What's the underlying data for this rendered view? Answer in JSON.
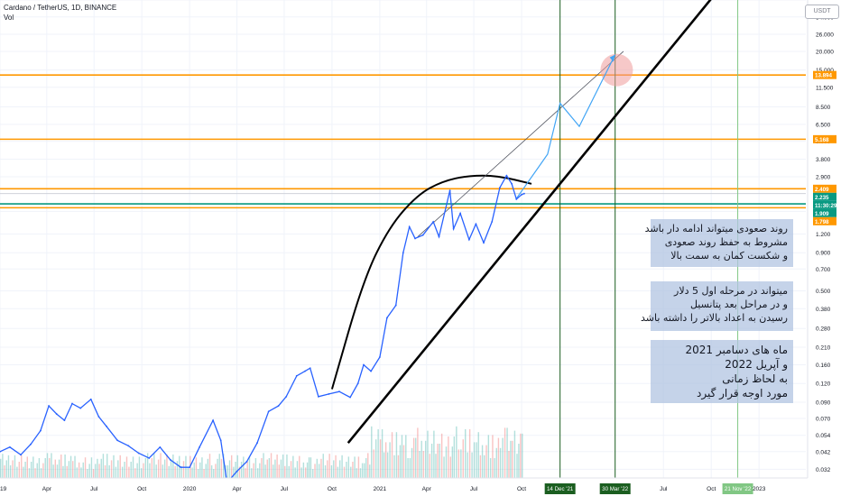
{
  "header": {
    "symbol_line": "Cardano / TetherUS, 1D, BINANCE",
    "volume_label": "Vol",
    "currency_label": "USDT"
  },
  "notes": [
    {
      "lines": [
        "روند صعودی میتواند ادامه دار باشد",
        "مشروط به حفظ روند صعودی",
        "و شکست کمان به سمت بالا"
      ]
    },
    {
      "lines": [
        "میتواند در مرحله اول 5 دلار",
        "و در مراحل بعد پتانسیل",
        "رسیدن به اعداد بالاتر را داشته باشد"
      ]
    },
    {
      "lines": [
        "ماه های دسامبر 2021",
        "و آپریل 2022",
        "به لحاظ زمانی",
        "مورد اوجه قرار گیرد"
      ]
    }
  ],
  "colors": {
    "price_line": "#2962ff",
    "trend_line": "#000000",
    "level_line": "#ff9800",
    "teal_line": "#089981",
    "vertical_green": "#1b5e20",
    "vertical_light_green": "#81c784",
    "target_circle": "#ef9a9a",
    "volume_up": "#26a69a",
    "volume_down": "#ef5350"
  },
  "chart_data": {
    "type": "line",
    "y_scale": "log",
    "ylim": [
      0.028,
      44.116
    ],
    "x_start": "2019-01-01",
    "x_end": "2023-04-01",
    "y_tick_labels": [
      "44.116",
      "34.000",
      "26.000",
      "20.000",
      "15.000",
      "11.500",
      "8.500",
      "6.500",
      "5.000",
      "3.800",
      "2.900",
      "1.700",
      "1.200",
      "0.900",
      "0.700",
      "0.500",
      "0.380",
      "0.280",
      "0.210",
      "0.160",
      "0.120",
      "0.090",
      "0.070",
      "0.054",
      "0.042",
      "0.032"
    ],
    "x_tick_labels": [
      {
        "date": "2019-01-01",
        "label": "2019"
      },
      {
        "date": "2019-04-01",
        "label": "Apr"
      },
      {
        "date": "2019-07-01",
        "label": "Jul"
      },
      {
        "date": "2019-10-01",
        "label": "Oct"
      },
      {
        "date": "2020-01-01",
        "label": "2020"
      },
      {
        "date": "2020-04-01",
        "label": "Apr"
      },
      {
        "date": "2020-07-01",
        "label": "Jul"
      },
      {
        "date": "2020-10-01",
        "label": "Oct"
      },
      {
        "date": "2021-01-01",
        "label": "2021"
      },
      {
        "date": "2021-04-01",
        "label": "Apr"
      },
      {
        "date": "2021-07-01",
        "label": "Jul"
      },
      {
        "date": "2021-10-01",
        "label": "Oct"
      },
      {
        "date": "2022-07-01",
        "label": "Jul"
      },
      {
        "date": "2022-10-01",
        "label": "Oct"
      },
      {
        "date": "2023-01-01",
        "label": "2023"
      }
    ],
    "highlighted_dates": [
      {
        "date": "2021-12-14",
        "label": "14 Dec '21",
        "style": "dark"
      },
      {
        "date": "2022-03-30",
        "label": "30 Mar '22",
        "style": "dark"
      },
      {
        "date": "2022-11-21",
        "label": "21 Nov '22",
        "style": "light"
      }
    ],
    "price_labels": [
      {
        "value": 13.894,
        "label": "13.894",
        "color": "#ff9800"
      },
      {
        "value": 5.168,
        "label": "5.168",
        "color": "#ff9800"
      },
      {
        "value": 2.409,
        "label": "2.409",
        "color": "#ff9800"
      },
      {
        "value": 2.235,
        "label": "2.235",
        "color": "#089981"
      },
      {
        "value": 2.235,
        "label": "11:30:29",
        "color": "#089981"
      },
      {
        "value": 1.909,
        "label": "1.909",
        "color": "#089981"
      },
      {
        "value": 1.798,
        "label": "1.798",
        "color": "#ff9800"
      }
    ],
    "horizontal_levels": [
      {
        "value": 13.894,
        "color": "#ff9800"
      },
      {
        "value": 5.168,
        "color": "#ff9800"
      },
      {
        "value": 2.409,
        "color": "#ff9800"
      },
      {
        "value": 1.909,
        "color": "#089981"
      },
      {
        "value": 1.798,
        "color": "#ff9800"
      }
    ],
    "series": [
      {
        "values": [
          [
            "2019-01-01",
            0.042
          ],
          [
            "2019-01-20",
            0.045
          ],
          [
            "2019-02-10",
            0.04
          ],
          [
            "2019-03-01",
            0.047
          ],
          [
            "2019-03-20",
            0.058
          ],
          [
            "2019-04-05",
            0.085
          ],
          [
            "2019-04-20",
            0.075
          ],
          [
            "2019-05-05",
            0.068
          ],
          [
            "2019-05-20",
            0.088
          ],
          [
            "2019-06-05",
            0.082
          ],
          [
            "2019-06-25",
            0.094
          ],
          [
            "2019-07-10",
            0.072
          ],
          [
            "2019-07-25",
            0.062
          ],
          [
            "2019-08-15",
            0.05
          ],
          [
            "2019-09-05",
            0.046
          ],
          [
            "2019-09-25",
            0.041
          ],
          [
            "2019-10-15",
            0.038
          ],
          [
            "2019-11-05",
            0.045
          ],
          [
            "2019-11-25",
            0.037
          ],
          [
            "2019-12-15",
            0.033
          ],
          [
            "2020-01-01",
            0.033
          ],
          [
            "2020-01-20",
            0.045
          ],
          [
            "2020-02-15",
            0.068
          ],
          [
            "2020-03-01",
            0.05
          ],
          [
            "2020-03-13",
            0.026
          ],
          [
            "2020-04-01",
            0.031
          ],
          [
            "2020-04-20",
            0.036
          ],
          [
            "2020-05-10",
            0.048
          ],
          [
            "2020-06-01",
            0.078
          ],
          [
            "2020-06-20",
            0.085
          ],
          [
            "2020-07-05",
            0.098
          ],
          [
            "2020-07-25",
            0.135
          ],
          [
            "2020-08-10",
            0.145
          ],
          [
            "2020-08-20",
            0.152
          ],
          [
            "2020-09-05",
            0.098
          ],
          [
            "2020-09-25",
            0.102
          ],
          [
            "2020-10-15",
            0.106
          ],
          [
            "2020-11-05",
            0.097
          ],
          [
            "2020-11-20",
            0.12
          ],
          [
            "2020-12-01",
            0.16
          ],
          [
            "2020-12-15",
            0.145
          ],
          [
            "2021-01-01",
            0.18
          ],
          [
            "2021-01-15",
            0.33
          ],
          [
            "2021-02-01",
            0.4
          ],
          [
            "2021-02-15",
            0.9
          ],
          [
            "2021-02-27",
            1.34
          ],
          [
            "2021-03-10",
            1.12
          ],
          [
            "2021-03-25",
            1.18
          ],
          [
            "2021-04-14",
            1.45
          ],
          [
            "2021-04-25",
            1.15
          ],
          [
            "2021-05-16",
            2.35
          ],
          [
            "2021-05-23",
            1.3
          ],
          [
            "2021-06-05",
            1.65
          ],
          [
            "2021-06-22",
            1.1
          ],
          [
            "2021-07-05",
            1.4
          ],
          [
            "2021-07-20",
            1.05
          ],
          [
            "2021-08-05",
            1.45
          ],
          [
            "2021-08-20",
            2.45
          ],
          [
            "2021-09-02",
            2.95
          ],
          [
            "2021-09-12",
            2.6
          ],
          [
            "2021-09-21",
            2.05
          ],
          [
            "2021-10-01",
            2.2
          ],
          [
            "2021-10-06",
            2.235
          ]
        ]
      }
    ],
    "drawings": {
      "support_line": [
        [
          "2020-11-01",
          0.048
        ],
        [
          "2022-10-01",
          45.0
        ]
      ],
      "upper_channel_line": [
        [
          "2021-03-15",
          1.15
        ],
        [
          "2022-04-15",
          20.0
        ]
      ],
      "projection_path": [
        [
          "2021-09-20",
          2.05
        ],
        [
          "2021-11-01",
          3.3
        ],
        [
          "2021-11-20",
          4.1
        ],
        [
          "2021-12-14",
          9.0
        ],
        [
          "2022-01-20",
          6.3
        ],
        [
          "2022-03-30",
          19.0
        ]
      ],
      "target_circle": [
        "2022-04-02",
        15.0
      ],
      "arc_points": [
        [
          "2020-10-01",
          0.11
        ],
        [
          "2020-12-01",
          0.6
        ],
        [
          "2021-01-20",
          1.35
        ],
        [
          "2021-03-15",
          2.2
        ],
        [
          "2021-05-01",
          2.7
        ],
        [
          "2021-06-20",
          2.95
        ],
        [
          "2021-08-15",
          2.95
        ],
        [
          "2021-10-20",
          2.6
        ]
      ]
    }
  }
}
